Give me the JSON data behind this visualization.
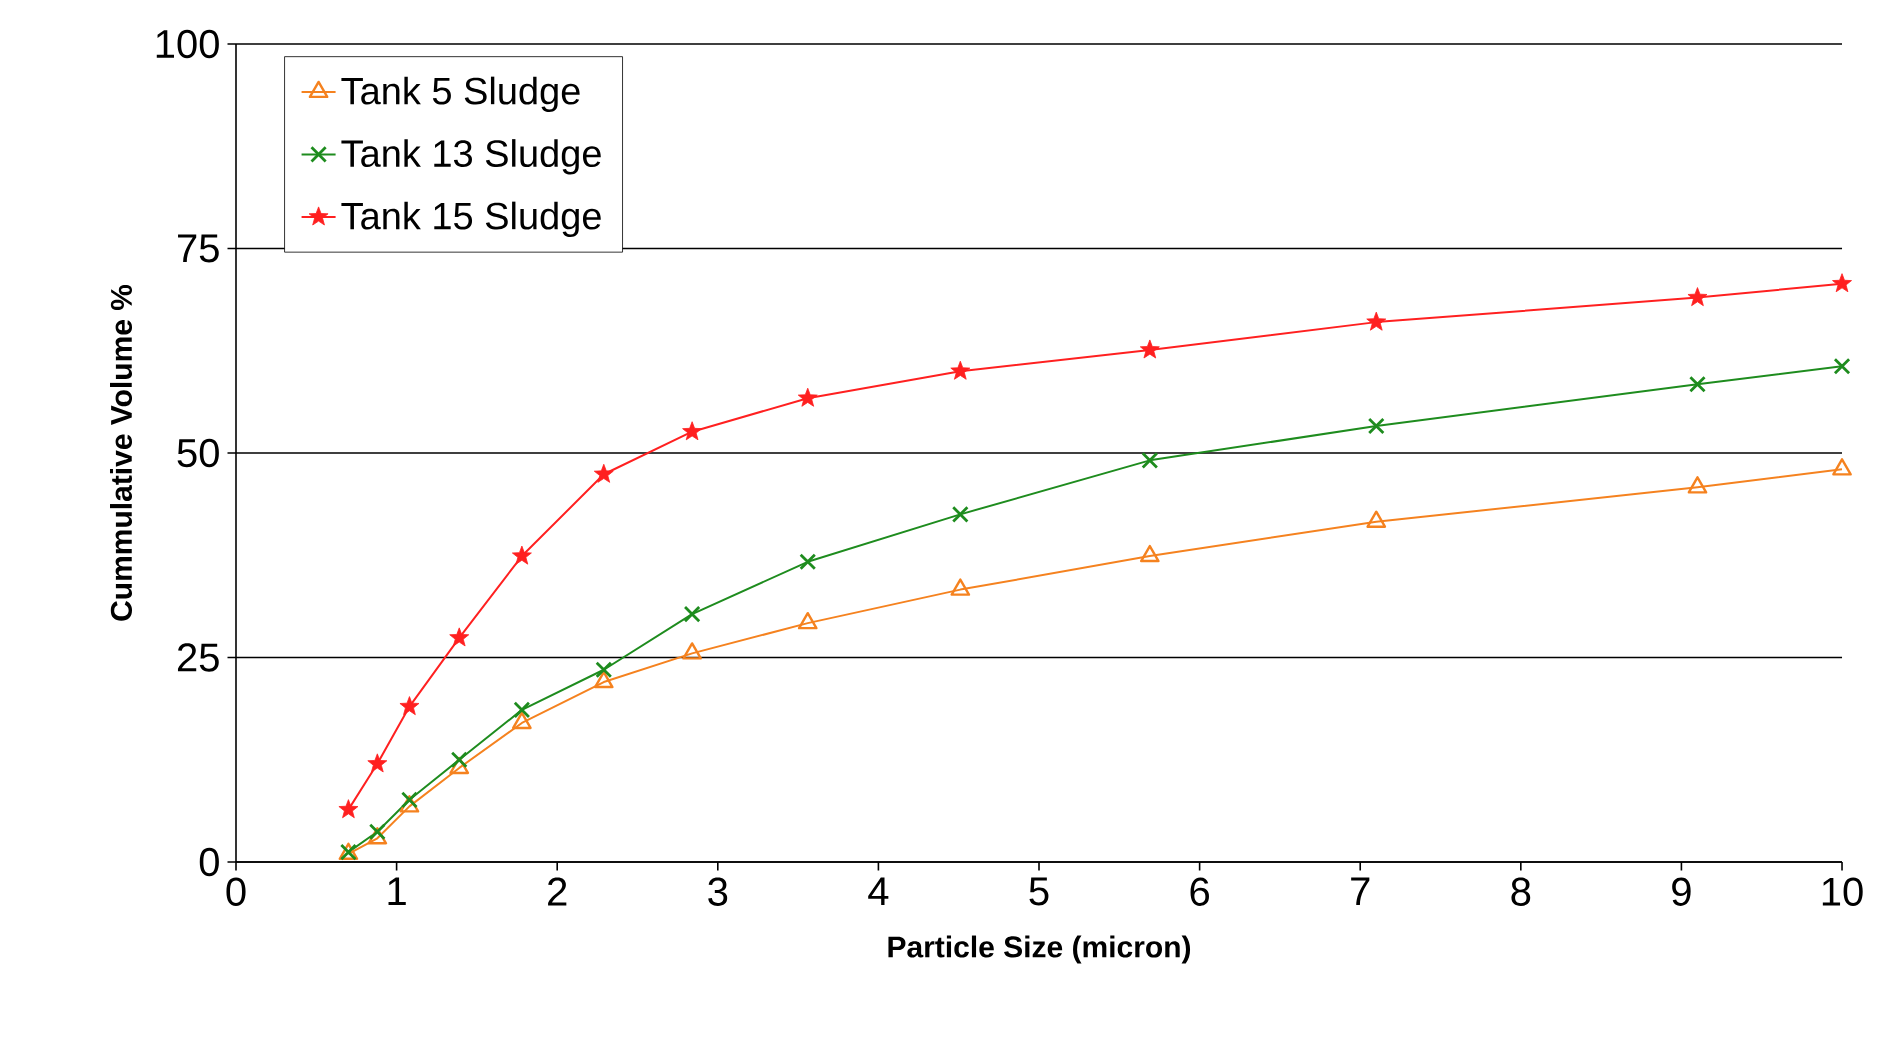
{
  "chart_data": {
    "type": "line",
    "xlabel": "Particle Size (micron)",
    "ylabel": "Cummulative Volume %",
    "xlim": [
      0,
      10
    ],
    "ylim": [
      0,
      100
    ],
    "xticks": [
      0,
      1,
      2,
      3,
      4,
      5,
      6,
      7,
      8,
      9,
      10
    ],
    "yticks": [
      0,
      25,
      50,
      75,
      100
    ],
    "grid": "y",
    "legend": "top left",
    "series": [
      {
        "name": "Tank 5 Sludge",
        "color": "#f5821f",
        "marker": "triangle",
        "x": [
          0.7,
          0.88,
          1.08,
          1.39,
          1.78,
          2.29,
          2.84,
          3.56,
          4.51,
          5.69,
          7.1,
          9.1,
          10
        ],
        "values": [
          1.0,
          2.9,
          6.8,
          11.5,
          17,
          22,
          25.5,
          29.2,
          33.3,
          37.4,
          41.6,
          45.8,
          48
        ]
      },
      {
        "name": "Tank 13 Sludge",
        "color": "#1e8c1e",
        "marker": "cross",
        "x": [
          0.7,
          0.88,
          1.08,
          1.39,
          1.78,
          2.29,
          2.84,
          3.56,
          4.51,
          5.69,
          7.1,
          9.1,
          10
        ],
        "values": [
          1.2,
          3.7,
          7.6,
          12.5,
          18.6,
          23.5,
          30.3,
          36.7,
          42.5,
          49.1,
          53.3,
          58.4,
          60.6
        ]
      },
      {
        "name": "Tank 15 Sludge",
        "color": "#ff2020",
        "marker": "star",
        "x": [
          0.7,
          0.88,
          1.08,
          1.39,
          1.78,
          2.29,
          2.84,
          3.56,
          4.51,
          5.69,
          7.1,
          9.1,
          10
        ],
        "values": [
          6.4,
          12,
          19,
          27.4,
          37.4,
          47.4,
          52.6,
          56.7,
          60,
          62.6,
          66,
          69,
          70.7
        ]
      }
    ]
  }
}
